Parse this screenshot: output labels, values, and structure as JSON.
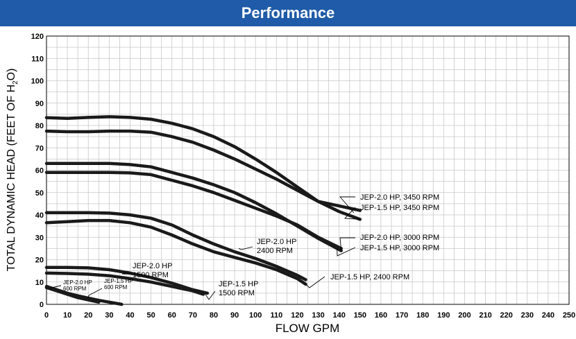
{
  "title": "Performance",
  "colors": {
    "banner": "#1f5ba8",
    "grid": "#c8c8c8",
    "curve": "#1a1a1a",
    "axis": "#000000"
  },
  "chart_data": {
    "type": "line",
    "title": "Performance",
    "xlabel": "FLOW GPM",
    "ylabel": {
      "main": "TOTAL DYNAMIC HEAD (FEET OF H",
      "sub": "2",
      "tail": "O)"
    },
    "xlim": [
      0,
      250
    ],
    "ylim": [
      0,
      120
    ],
    "x_ticks": [
      "0",
      "10",
      "20",
      "30",
      "40",
      "50",
      "60",
      "70",
      "80",
      "90",
      "100",
      "110",
      "120",
      "130",
      "140",
      "150",
      "160",
      "170",
      "180",
      "190",
      "200",
      "210",
      "220",
      "230",
      "240",
      "250"
    ],
    "y_ticks": [
      "0",
      "10",
      "20",
      "30",
      "40",
      "50",
      "60",
      "70",
      "80",
      "90",
      "100",
      "110",
      "120"
    ],
    "grid": true,
    "series": [
      {
        "name": "JEP-2.0 HP, 3450 RPM",
        "points": [
          [
            0,
            83.5
          ],
          [
            10,
            83.2
          ],
          [
            20,
            83.6
          ],
          [
            30,
            83.9
          ],
          [
            40,
            83.6
          ],
          [
            50,
            82.8
          ],
          [
            60,
            81
          ],
          [
            70,
            78.5
          ],
          [
            80,
            75
          ],
          [
            90,
            70.5
          ],
          [
            100,
            65
          ],
          [
            110,
            59
          ],
          [
            120,
            52.5
          ],
          [
            130,
            46
          ],
          [
            140,
            41.5
          ],
          [
            150,
            38
          ]
        ]
      },
      {
        "name": "JEP-1.5 HP, 3450 RPM",
        "points": [
          [
            0,
            77.5
          ],
          [
            10,
            77.2
          ],
          [
            20,
            77.2
          ],
          [
            30,
            77.5
          ],
          [
            40,
            77.5
          ],
          [
            50,
            77
          ],
          [
            60,
            75
          ],
          [
            70,
            72.5
          ],
          [
            80,
            69
          ],
          [
            90,
            65
          ],
          [
            100,
            60.5
          ],
          [
            110,
            56
          ],
          [
            120,
            51
          ],
          [
            130,
            46
          ],
          [
            140,
            44
          ],
          [
            150,
            42
          ]
        ]
      },
      {
        "name": "JEP-2.0 HP, 3000 RPM",
        "points": [
          [
            0,
            63
          ],
          [
            10,
            63
          ],
          [
            20,
            63
          ],
          [
            30,
            63
          ],
          [
            40,
            62.5
          ],
          [
            50,
            61.5
          ],
          [
            60,
            59
          ],
          [
            70,
            56.5
          ],
          [
            80,
            53.5
          ],
          [
            90,
            50
          ],
          [
            100,
            45.5
          ],
          [
            110,
            40.5
          ],
          [
            120,
            35
          ],
          [
            130,
            29.5
          ],
          [
            141,
            24
          ]
        ]
      },
      {
        "name": "JEP-1.5 HP, 3000 RPM",
        "points": [
          [
            0,
            59
          ],
          [
            10,
            59
          ],
          [
            20,
            59
          ],
          [
            30,
            59
          ],
          [
            40,
            58.8
          ],
          [
            50,
            58
          ],
          [
            60,
            55.5
          ],
          [
            70,
            53
          ],
          [
            80,
            50
          ],
          [
            90,
            46.5
          ],
          [
            100,
            43
          ],
          [
            110,
            39.5
          ],
          [
            120,
            35.5
          ],
          [
            130,
            30
          ],
          [
            141,
            25
          ]
        ]
      },
      {
        "name": "JEP-2.0 HP, 2400 RPM",
        "points": [
          [
            0,
            41
          ],
          [
            10,
            41
          ],
          [
            20,
            41
          ],
          [
            30,
            40.8
          ],
          [
            40,
            40
          ],
          [
            50,
            38.5
          ],
          [
            60,
            35.5
          ],
          [
            70,
            31
          ],
          [
            80,
            27
          ],
          [
            90,
            23.5
          ],
          [
            100,
            20.5
          ],
          [
            110,
            17
          ],
          [
            120,
            13
          ],
          [
            124,
            11
          ]
        ]
      },
      {
        "name": "JEP-1.5 HP, 2400 RPM",
        "points": [
          [
            0,
            36.5
          ],
          [
            10,
            37
          ],
          [
            20,
            37.5
          ],
          [
            30,
            37.5
          ],
          [
            40,
            36.5
          ],
          [
            50,
            34.5
          ],
          [
            60,
            31
          ],
          [
            70,
            27
          ],
          [
            80,
            23.5
          ],
          [
            90,
            21
          ],
          [
            100,
            18.5
          ],
          [
            110,
            15.5
          ],
          [
            120,
            11.5
          ],
          [
            124,
            9
          ]
        ]
      },
      {
        "name": "JEP-2.0 HP 1500 RPM",
        "points": [
          [
            0,
            16.5
          ],
          [
            10,
            16.5
          ],
          [
            20,
            16.3
          ],
          [
            30,
            15.5
          ],
          [
            40,
            14
          ],
          [
            50,
            12
          ],
          [
            60,
            9.5
          ],
          [
            70,
            6.5
          ],
          [
            77,
            5
          ]
        ]
      },
      {
        "name": "JEP-1.5 HP 1500 RPM",
        "points": [
          [
            0,
            14
          ],
          [
            10,
            13.8
          ],
          [
            20,
            13.5
          ],
          [
            30,
            12.8
          ],
          [
            40,
            11.5
          ],
          [
            50,
            10
          ],
          [
            60,
            8
          ],
          [
            70,
            6
          ],
          [
            75,
            4.5
          ]
        ]
      },
      {
        "name": "JEP-2.0 HP 600 RPM",
        "points": [
          [
            0,
            7.5
          ],
          [
            5,
            6
          ],
          [
            10,
            4.5
          ],
          [
            15,
            3
          ],
          [
            20,
            2
          ],
          [
            25,
            1
          ]
        ]
      },
      {
        "name": "JEP-1.5 HP 600 RPM",
        "points": [
          [
            0,
            8
          ],
          [
            5,
            6.5
          ],
          [
            10,
            5
          ],
          [
            15,
            3.8
          ],
          [
            20,
            2.8
          ],
          [
            25,
            1.8
          ],
          [
            30,
            1
          ],
          [
            36,
            0
          ]
        ]
      }
    ],
    "annotations": [
      {
        "lines": [
          "JEP-2.0 HP, 3450 RPM"
        ],
        "points_to": [
          147,
          41
        ]
      },
      {
        "lines": [
          "JEP-1.5 HP, 3450 RPM"
        ],
        "points_to": [
          150,
          38
        ]
      },
      {
        "lines": [
          "JEP-2.0 HP, 3000 RPM"
        ],
        "points_to": [
          141,
          24
        ]
      },
      {
        "lines": [
          "JEP-1.5 HP, 3000 RPM"
        ],
        "points_to": [
          139,
          25
        ]
      },
      {
        "lines": [
          "JEP-2.0 HP",
          "2400 RPM"
        ],
        "points_to": [
          92,
          25
        ]
      },
      {
        "lines": [
          "JEP-1.5 HP, 2400 RPM"
        ],
        "points_to": [
          124,
          9
        ]
      },
      {
        "lines": [
          "JEP-2.0 HP",
          "1500 RPM"
        ],
        "points_to": [
          41,
          13.5
        ]
      },
      {
        "lines": [
          "JEP-1.5 HP",
          "1500 RPM"
        ],
        "points_to": [
          76,
          4.5
        ]
      },
      {
        "lines": [
          "JEP-2.0 HP",
          "600 RPM"
        ],
        "points_to": [
          2,
          7
        ]
      },
      {
        "lines": [
          "JEP-1.5 HP",
          "600 RPM"
        ],
        "points_to": [
          20,
          2.5
        ]
      }
    ]
  }
}
